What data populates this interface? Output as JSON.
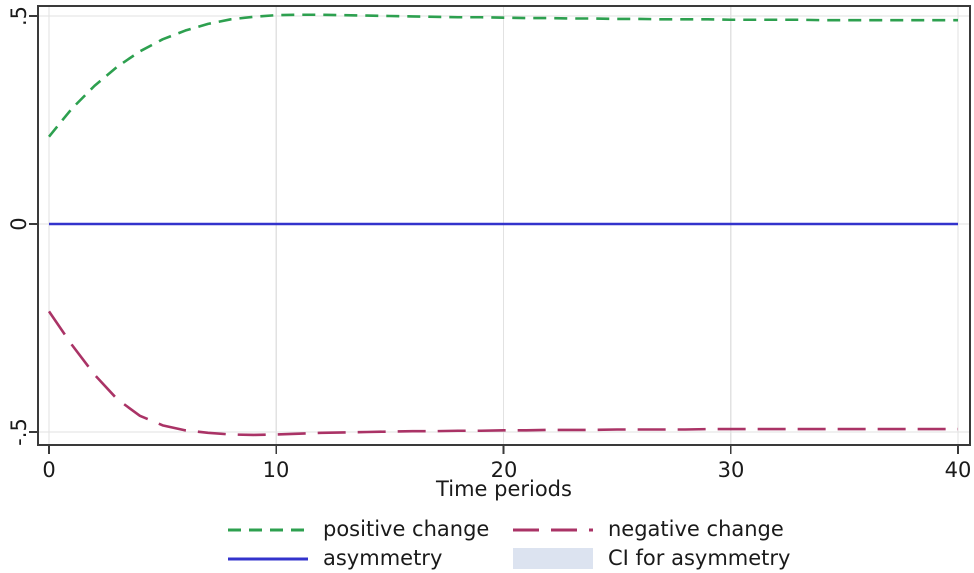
{
  "chart_data": {
    "type": "line",
    "title": "",
    "xlabel": "Time periods",
    "ylabel": "",
    "x_range": [
      0,
      40
    ],
    "ylim": [
      -0.53,
      0.53
    ],
    "x_ticks": [
      0,
      10,
      20,
      30,
      40
    ],
    "x_ticklabels": [
      "0",
      "10",
      "20",
      "30",
      "40"
    ],
    "y_ticks": [
      0.5,
      0,
      -0.5
    ],
    "y_ticklabels": [
      ".5",
      "0",
      "-.5"
    ],
    "grid": "both-light",
    "legend_position": "bottom",
    "colors": {
      "positive": "#2da04f",
      "negative": "#aa3366",
      "asymmetry": "#3333cc",
      "ci_fill": "#dce3f0",
      "gridline": "#e2e2e2",
      "axis": "#3a3a3a"
    },
    "series": [
      {
        "name": "positive change",
        "color": "#2da04f",
        "line_style": "dashed",
        "values": [
          0.21,
          0.277,
          0.332,
          0.378,
          0.415,
          0.444,
          0.465,
          0.481,
          0.492,
          0.498,
          0.502,
          0.503,
          0.503,
          0.502,
          0.501,
          0.5,
          0.499,
          0.498,
          0.497,
          0.497,
          0.496,
          0.495,
          0.495,
          0.494,
          0.494,
          0.493,
          0.493,
          0.492,
          0.492,
          0.492,
          0.491,
          0.491,
          0.491,
          0.491,
          0.49,
          0.49,
          0.49,
          0.49,
          0.49,
          0.49,
          0.49
        ]
      },
      {
        "name": "negative change",
        "color": "#aa3366",
        "line_style": "longdash",
        "values": [
          -0.21,
          -0.29,
          -0.362,
          -0.421,
          -0.461,
          -0.484,
          -0.496,
          -0.502,
          -0.506,
          -0.507,
          -0.506,
          -0.504,
          -0.502,
          -0.501,
          -0.5,
          -0.499,
          -0.498,
          -0.498,
          -0.497,
          -0.497,
          -0.496,
          -0.496,
          -0.495,
          -0.495,
          -0.495,
          -0.494,
          -0.494,
          -0.494,
          -0.494,
          -0.493,
          -0.493,
          -0.493,
          -0.493,
          -0.493,
          -0.493,
          -0.493,
          -0.493,
          -0.493,
          -0.493,
          -0.493,
          -0.493
        ]
      },
      {
        "name": "asymmetry",
        "color": "#3333cc",
        "line_style": "solid",
        "values": [
          0,
          0,
          0,
          0,
          0,
          0,
          0,
          0,
          0,
          0,
          0,
          0,
          0,
          0,
          0,
          0,
          0,
          0,
          0,
          0,
          0,
          0,
          0,
          0,
          0,
          0,
          0,
          0,
          0,
          0,
          0,
          0,
          0,
          0,
          0,
          0,
          0,
          0,
          0,
          0,
          0
        ]
      },
      {
        "name": "CI for asymmetry",
        "color": "#dce3f0",
        "line_style": "area",
        "band_halfwidth": 0,
        "values": [
          0,
          0,
          0,
          0,
          0,
          0,
          0,
          0,
          0,
          0,
          0,
          0,
          0,
          0,
          0,
          0,
          0,
          0,
          0,
          0,
          0,
          0,
          0,
          0,
          0,
          0,
          0,
          0,
          0,
          0,
          0,
          0,
          0,
          0,
          0,
          0,
          0,
          0,
          0,
          0,
          0
        ]
      }
    ]
  }
}
